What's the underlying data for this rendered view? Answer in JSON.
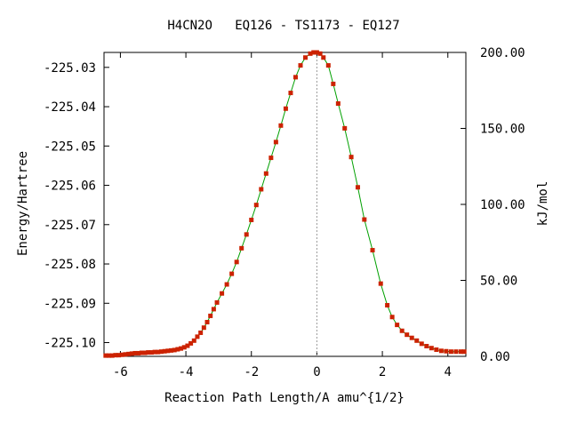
{
  "chart_data": {
    "type": "line",
    "title": "H4CN2O   EQ126 - TS1173 - EQ127",
    "xlabel": "Reaction Path Length/A amu^{1/2}",
    "ylabel": "Energy/Hartree",
    "y2label": "kJ/mol",
    "xlim": [
      -6.5,
      4.55
    ],
    "ylim": [
      -225.1035,
      -225.0262
    ],
    "y2lim": [
      0.0,
      200.0
    ],
    "x_ticks": [
      -6,
      -4,
      -2,
      0,
      2,
      4
    ],
    "x_tick_labels": [
      "-6",
      "-4",
      "-2",
      "0",
      "2",
      "4"
    ],
    "y_ticks": [
      -225.03,
      -225.04,
      -225.05,
      -225.06,
      -225.07,
      -225.08,
      -225.09,
      -225.1
    ],
    "y_tick_labels": [
      "-225.03",
      "-225.04",
      "-225.05",
      "-225.06",
      "-225.07",
      "-225.08",
      "-225.09",
      "-225.10"
    ],
    "y2_ticks": [
      200,
      150,
      100,
      50,
      0
    ],
    "y2_tick_labels": [
      "200.00",
      "150.00",
      "100.00",
      "50.00",
      "0.00"
    ],
    "ts_x": 0.0,
    "grid": false,
    "line_color": "#00a000",
    "marker_color": "#cc2200",
    "vline_color": "#999999",
    "series": [
      {
        "x": [
          -6.45,
          -6.35,
          -6.25,
          -6.15,
          -6.05,
          -5.95,
          -5.85,
          -5.75,
          -5.65,
          -5.55,
          -5.45,
          -5.35,
          -5.25,
          -5.15,
          -5.05,
          -4.95,
          -4.85,
          -4.75,
          -4.65,
          -4.55,
          -4.45,
          -4.35,
          -4.25,
          -4.15,
          -4.05,
          -3.95,
          -3.85,
          -3.75,
          -3.65,
          -3.55,
          -3.45,
          -3.35,
          -3.25,
          -3.15,
          -3.05,
          -2.9,
          -2.75,
          -2.6,
          -2.45,
          -2.3,
          -2.15,
          -2.0,
          -1.85,
          -1.7,
          -1.55,
          -1.4,
          -1.25,
          -1.1,
          -0.95,
          -0.8,
          -0.65,
          -0.5,
          -0.35,
          -0.2,
          -0.1,
          0.0,
          0.1,
          0.2,
          0.35,
          0.5,
          0.65,
          0.85,
          1.05,
          1.25,
          1.45,
          1.7,
          1.95,
          2.15,
          2.3,
          2.45,
          2.6,
          2.75,
          2.9,
          3.05,
          3.2,
          3.35,
          3.5,
          3.65,
          3.8,
          3.95,
          4.1,
          4.25,
          4.4,
          4.5
        ],
        "y": [
          -225.1033,
          -225.1033,
          -225.1033,
          -225.1032,
          -225.1032,
          -225.1031,
          -225.103,
          -225.1029,
          -225.1028,
          -225.1027,
          -225.1027,
          -225.1026,
          -225.1026,
          -225.1025,
          -225.1025,
          -225.1024,
          -225.1024,
          -225.1023,
          -225.1022,
          -225.1021,
          -225.102,
          -225.1019,
          -225.1017,
          -225.1015,
          -225.1012,
          -225.1008,
          -225.1002,
          -225.0995,
          -225.0985,
          -225.0975,
          -225.0962,
          -225.0948,
          -225.0932,
          -225.0915,
          -225.0898,
          -225.0875,
          -225.0852,
          -225.0825,
          -225.0795,
          -225.076,
          -225.0725,
          -225.0688,
          -225.065,
          -225.061,
          -225.057,
          -225.053,
          -225.049,
          -225.0448,
          -225.0405,
          -225.0365,
          -225.0325,
          -225.0295,
          -225.0275,
          -225.0265,
          -225.0262,
          -225.0262,
          -225.0265,
          -225.0275,
          -225.0295,
          -225.0342,
          -225.0392,
          -225.0455,
          -225.0528,
          -225.0605,
          -225.0687,
          -225.0765,
          -225.085,
          -225.0905,
          -225.0935,
          -225.0955,
          -225.097,
          -225.098,
          -225.0988,
          -225.0995,
          -225.1003,
          -225.1009,
          -225.1014,
          -225.1018,
          -225.1021,
          -225.1022,
          -225.1023,
          -225.1023,
          -225.1023,
          -225.1023
        ]
      }
    ]
  }
}
